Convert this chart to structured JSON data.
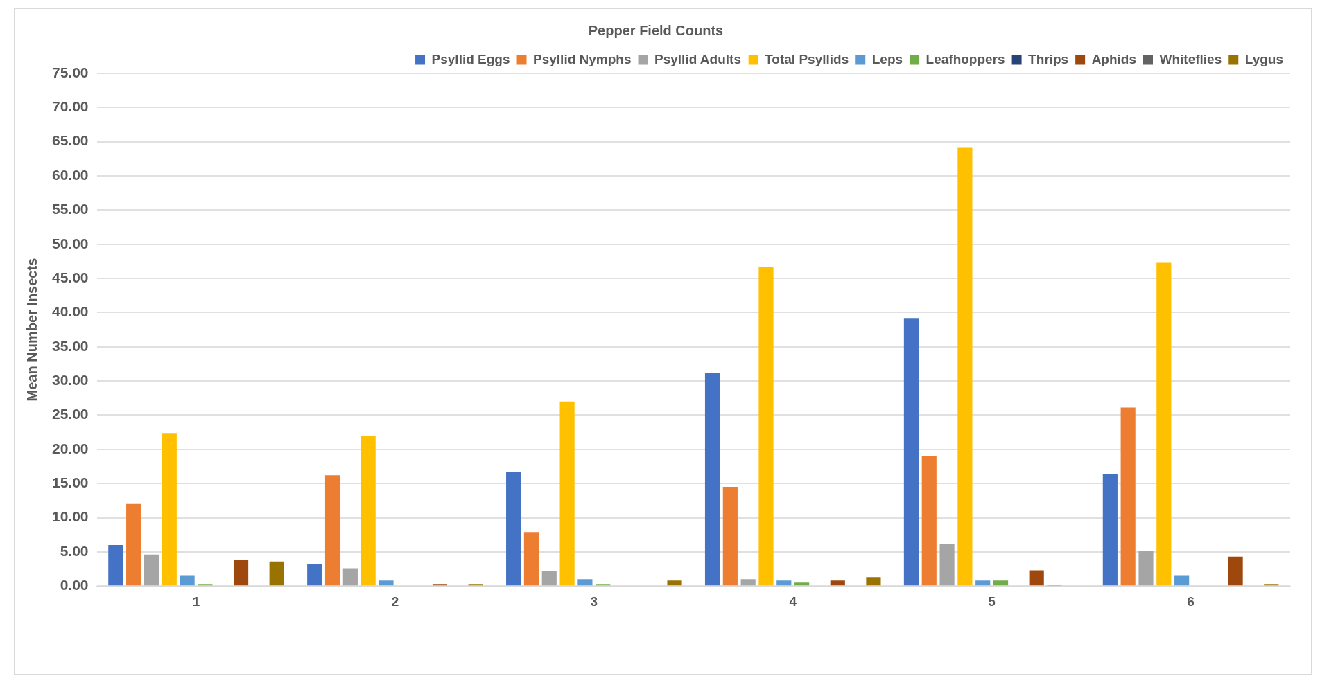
{
  "chart_data": {
    "type": "bar",
    "title": "Pepper Field Counts",
    "ylabel": "Mean Number Insects",
    "categories": [
      "1",
      "2",
      "3",
      "4",
      "5",
      "6"
    ],
    "series": [
      {
        "name": "Psyllid Eggs",
        "color": "#4472c4",
        "values": [
          6.0,
          3.2,
          16.7,
          31.2,
          39.2,
          16.4
        ]
      },
      {
        "name": "Psyllid Nymphs",
        "color": "#ed7d31",
        "values": [
          12.0,
          16.2,
          7.9,
          14.5,
          19.0,
          26.1
        ]
      },
      {
        "name": "Psyllid Adults",
        "color": "#a5a5a5",
        "values": [
          4.6,
          2.6,
          2.2,
          1.0,
          6.1,
          5.1
        ]
      },
      {
        "name": "Total Psyllids",
        "color": "#ffc000",
        "values": [
          22.4,
          21.9,
          27.0,
          46.7,
          64.2,
          47.3
        ]
      },
      {
        "name": "Leps",
        "color": "#5b9bd5",
        "values": [
          1.6,
          0.8,
          1.0,
          0.8,
          0.8,
          1.6
        ]
      },
      {
        "name": "Leafhoppers",
        "color": "#70ad47",
        "values": [
          0.3,
          0,
          0.3,
          0.5,
          0.8,
          0
        ]
      },
      {
        "name": "Thrips",
        "color": "#264478",
        "values": [
          0,
          0,
          0,
          0,
          0,
          0
        ]
      },
      {
        "name": "Aphids",
        "color": "#9e480e",
        "values": [
          3.8,
          0.3,
          0,
          0.8,
          2.3,
          4.3
        ]
      },
      {
        "name": "Whiteflies",
        "color": "#636363",
        "values": [
          0,
          0,
          0,
          0,
          0.2,
          0
        ]
      },
      {
        "name": "Lygus",
        "color": "#997300",
        "values": [
          3.6,
          0.3,
          0.8,
          1.3,
          0,
          0.3
        ]
      }
    ],
    "ylim": [
      0,
      75
    ],
    "yticks": [
      {
        "value": 0,
        "label": "0.00"
      },
      {
        "value": 5,
        "label": "5.00"
      },
      {
        "value": 10,
        "label": "10.00"
      },
      {
        "value": 15,
        "label": "15.00"
      },
      {
        "value": 20,
        "label": "20.00"
      },
      {
        "value": 25,
        "label": "25.00"
      },
      {
        "value": 30,
        "label": "30.00"
      },
      {
        "value": 35,
        "label": "35.00"
      },
      {
        "value": 40,
        "label": "40.00"
      },
      {
        "value": 45,
        "label": "45.00"
      },
      {
        "value": 50,
        "label": "50.00"
      },
      {
        "value": 55,
        "label": "55.00"
      },
      {
        "value": 60,
        "label": "60.00"
      },
      {
        "value": 65,
        "label": "65.00"
      },
      {
        "value": 70,
        "label": "70.00"
      },
      {
        "value": 75,
        "label": "75.00"
      }
    ],
    "grid": "y",
    "legend": "top"
  }
}
